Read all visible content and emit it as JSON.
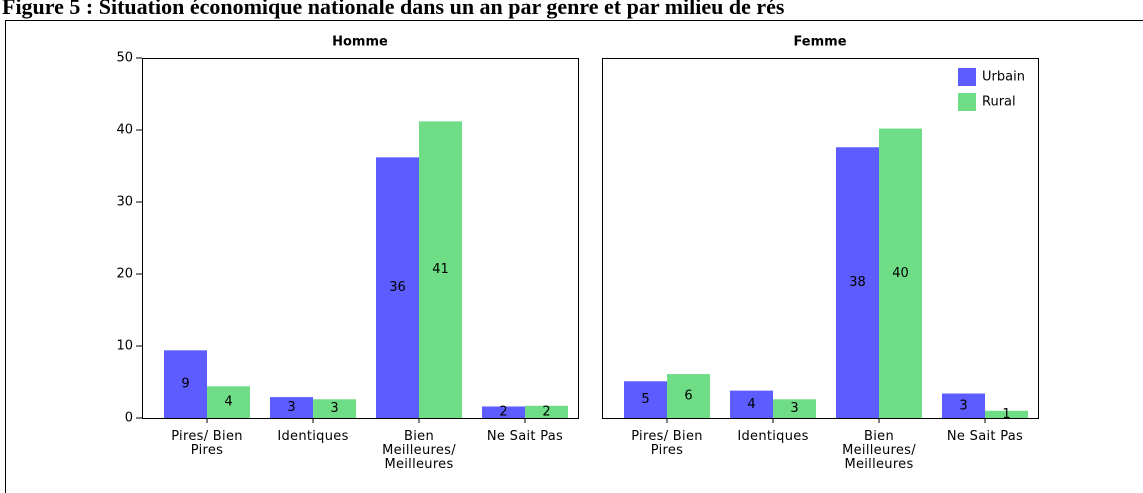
{
  "title": "Figure 5 : Situation économique nationale dans un an par genre et par milieu de rés",
  "chart_data": [
    {
      "type": "bar",
      "title": "Homme",
      "categories": [
        "Pires/ Bien Pires",
        "Identiques",
        "Bien Meilleures/ Meilleures",
        "Ne Sait Pas"
      ],
      "series": [
        {
          "name": "Urbain",
          "color": "#5c5cff",
          "values": [
            9.4,
            2.9,
            36.2,
            1.6
          ],
          "value_labels": [
            "9",
            "3",
            "36",
            "2"
          ]
        },
        {
          "name": "Rural",
          "color": "#6fdc86",
          "values": [
            4.4,
            2.6,
            41.2,
            1.7
          ],
          "value_labels": [
            "4",
            "3",
            "41",
            "2"
          ]
        }
      ],
      "ylim": [
        0,
        50
      ],
      "yticks": [
        0,
        10,
        20,
        30,
        40,
        50
      ]
    },
    {
      "type": "bar",
      "title": "Femme",
      "categories": [
        "Pires/ Bien Pires",
        "Identiques",
        "Bien Meilleures/ Meilleures",
        "Ne Sait Pas"
      ],
      "series": [
        {
          "name": "Urbain",
          "color": "#5c5cff",
          "values": [
            5.1,
            3.8,
            37.6,
            3.4
          ],
          "value_labels": [
            "5",
            "4",
            "38",
            "3"
          ]
        },
        {
          "name": "Rural",
          "color": "#6fdc86",
          "values": [
            6.1,
            2.6,
            40.2,
            1.0
          ],
          "value_labels": [
            "6",
            "3",
            "40",
            "1"
          ]
        }
      ],
      "ylim": [
        0,
        50
      ],
      "legend": "upper right"
    }
  ]
}
